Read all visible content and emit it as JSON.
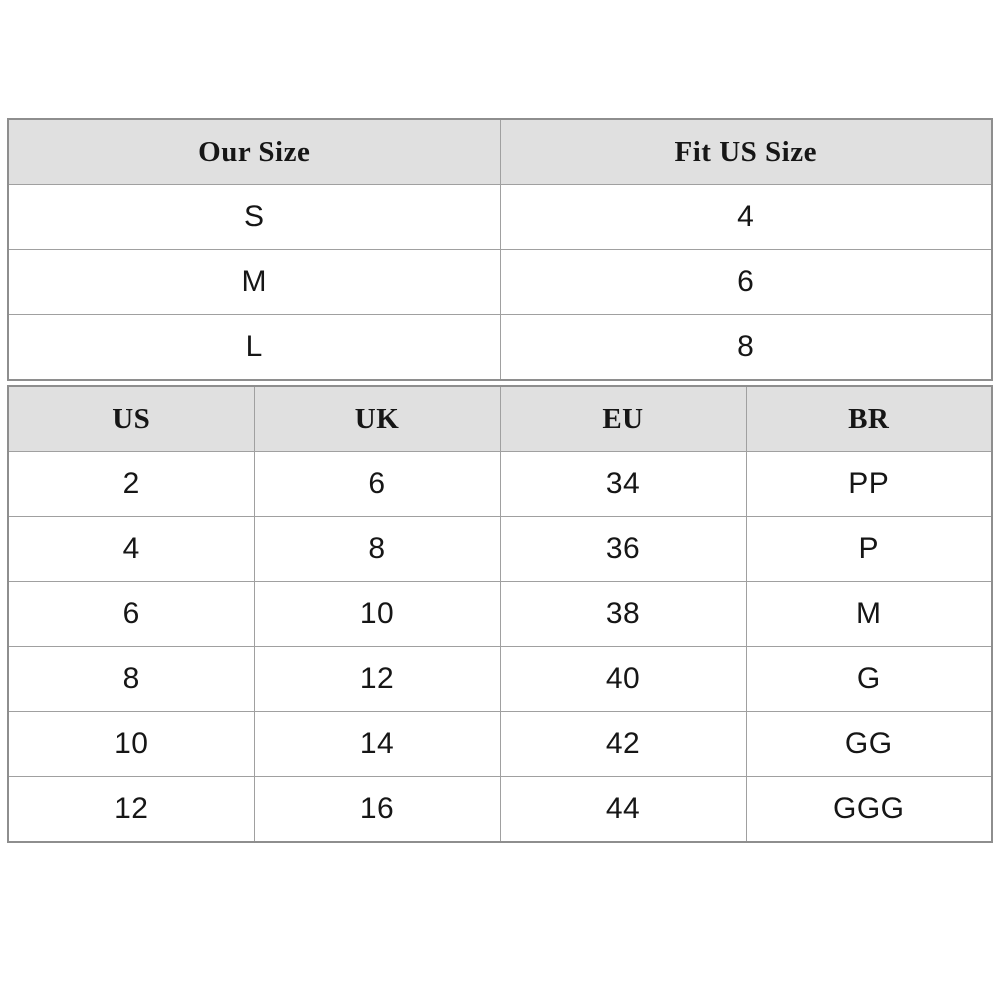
{
  "page": {
    "background_color": "#ffffff",
    "text_color": "#161616"
  },
  "colors": {
    "header_background": "#e0e0e0",
    "inner_border": "#a0a0a0",
    "outer_border": "#8e8e8e"
  },
  "conversion_table": {
    "headers": [
      "Our Size",
      "Fit US Size"
    ],
    "rows": [
      [
        "S",
        "4"
      ],
      [
        "M",
        "6"
      ],
      [
        "L",
        "8"
      ]
    ]
  },
  "international_table": {
    "headers": [
      "US",
      "UK",
      "EU",
      "BR"
    ],
    "rows": [
      [
        "2",
        "6",
        "34",
        "PP"
      ],
      [
        "4",
        "8",
        "36",
        "P"
      ],
      [
        "6",
        "10",
        "38",
        "M"
      ],
      [
        "8",
        "12",
        "40",
        "G"
      ],
      [
        "10",
        "14",
        "42",
        "GG"
      ],
      [
        "12",
        "16",
        "44",
        "GGG"
      ]
    ]
  }
}
